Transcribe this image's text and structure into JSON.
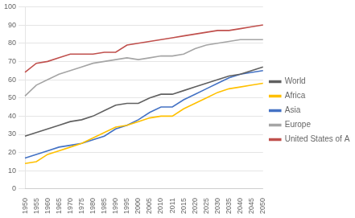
{
  "chart_data": {
    "type": "line",
    "categories": [
      "1950",
      "1955",
      "1960",
      "1965",
      "1970",
      "1975",
      "1980",
      "1985",
      "1990",
      "1995",
      "2000",
      "2005",
      "2010",
      "2011",
      "2015",
      "2020",
      "2025",
      "2030",
      "2035",
      "2040",
      "2045",
      "2050"
    ],
    "series": [
      {
        "name": "World",
        "color": "#606060",
        "values": [
          29,
          31,
          33,
          35,
          37,
          38,
          40,
          43,
          46,
          47,
          47,
          50,
          52,
          52,
          54,
          56,
          58,
          60,
          62,
          63,
          65,
          67
        ]
      },
      {
        "name": "Africa",
        "color": "#FFC000",
        "values": [
          14,
          15,
          19,
          21,
          23,
          25,
          28,
          31,
          34,
          35,
          37,
          39,
          40,
          40,
          44,
          47,
          50,
          53,
          55,
          56,
          57,
          58
        ]
      },
      {
        "name": "Asia",
        "color": "#4472C4",
        "values": [
          17,
          19,
          21,
          23,
          24,
          25,
          27,
          29,
          33,
          35,
          38,
          42,
          45,
          45,
          49,
          52,
          55,
          58,
          61,
          63,
          64,
          65
        ]
      },
      {
        "name": "Europe",
        "color": "#A5A5A5",
        "values": [
          51,
          57,
          60,
          63,
          65,
          67,
          69,
          70,
          71,
          72,
          71,
          72,
          73,
          73,
          74,
          77,
          79,
          80,
          81,
          82,
          82,
          82
        ]
      },
      {
        "name": "United States of America",
        "color": "#C0504D",
        "values": [
          64,
          69,
          70,
          72,
          74,
          74,
          74,
          75,
          75,
          79,
          80,
          81,
          82,
          83,
          84,
          85,
          86,
          87,
          87,
          88,
          89,
          90
        ]
      }
    ],
    "ylim": [
      0,
      100
    ],
    "yticks": [
      0,
      10,
      20,
      30,
      40,
      50,
      60,
      70,
      80,
      90,
      100
    ],
    "grid": true,
    "legend": "right"
  }
}
